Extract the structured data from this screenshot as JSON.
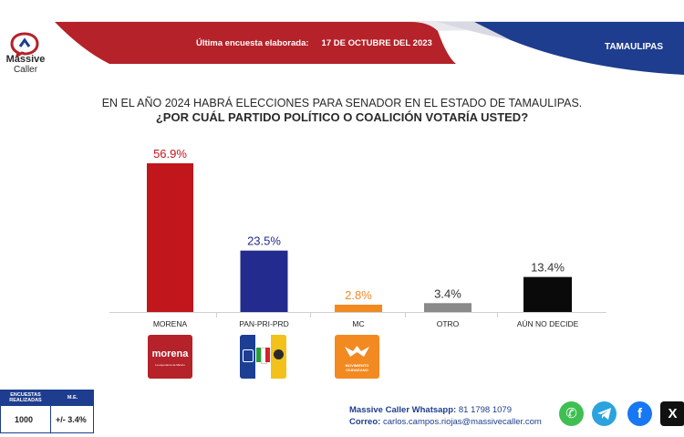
{
  "brand": {
    "name_line1": "Massive",
    "name_line2": "Caller",
    "primary_color": "#b5222a",
    "secondary_color": "#1e3d8f"
  },
  "header": {
    "survey_label": "Última encuesta elaborada:",
    "survey_date": "17 DE OCTUBRE DEL 2023",
    "state": "TAMAULIPAS"
  },
  "question": {
    "line1": "EN EL AÑO 2024 HABRÁ ELECCIONES PARA SENADOR EN EL ESTADO DE TAMAULIPAS.",
    "line2": "¿POR CUÁL PARTIDO POLÍTICO O COALICIÓN  VOTARÍA USTED?"
  },
  "chart_data": {
    "type": "bar",
    "categories": [
      "MORENA",
      "PAN-PRI-PRD",
      "MC",
      "OTRO",
      "AÚN NO DECIDE"
    ],
    "values": [
      56.9,
      23.5,
      2.8,
      3.4,
      13.4
    ],
    "value_labels": [
      "56.9%",
      "23.5%",
      "2.8%",
      "3.4%",
      "13.4%"
    ],
    "bar_colors": [
      "#c0161c",
      "#232b8f",
      "#f28a21",
      "#8a8a8a",
      "#0a0a0a"
    ],
    "label_colors": [
      "#c0161c",
      "#232b8f",
      "#f28a21",
      "#333333",
      "#333333"
    ],
    "ylim": [
      0,
      56.9
    ],
    "grid": false,
    "xlabel": "",
    "ylabel": ""
  },
  "party_logos": {
    "morena": {
      "name": "morena",
      "tagline": "La esperanza de México"
    },
    "mc": {
      "name": "MOVIMIENTO CIUDADANO"
    }
  },
  "stats": {
    "header_surveys": "ENCUESTAS REALIZADAS",
    "header_me": "M.E.",
    "surveys": "1000",
    "margin_error": "+/- 3.4%"
  },
  "contact": {
    "whatsapp_label": "Massive Caller Whatsapp:",
    "whatsapp_number": "81 1798 1079",
    "email_label": "Correo:",
    "email": "carlos.campos.riojas@massivecaller.com"
  },
  "social_icons": [
    "whatsapp-icon",
    "telegram-icon",
    "facebook-icon",
    "x-icon"
  ]
}
